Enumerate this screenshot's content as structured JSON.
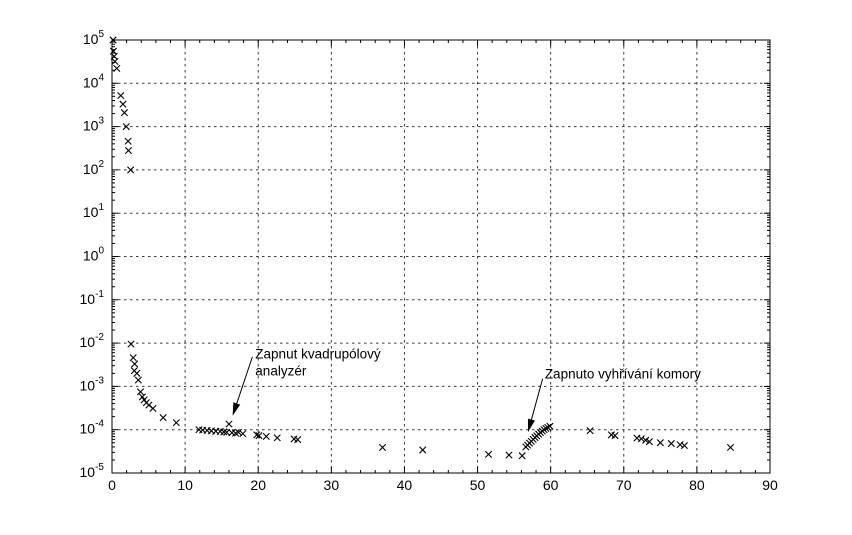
{
  "chart_data": {
    "type": "scatter",
    "title": "",
    "xlabel": "",
    "ylabel": "",
    "marker": "x",
    "legend": null,
    "grid": {
      "style": "dashed",
      "x": true,
      "y": true
    },
    "x_axis": {
      "min": 0,
      "max": 90,
      "major_tick_step": 10,
      "minor_tick_step": 2,
      "tick_labels": [
        "0",
        "10",
        "20",
        "30",
        "40",
        "50",
        "60",
        "70",
        "80",
        "90"
      ]
    },
    "y_axis": {
      "scale": "log",
      "min_exp": -5,
      "max_exp": 5,
      "tick_label_base": "10",
      "tick_exponents": [
        5,
        4,
        3,
        2,
        1,
        0,
        -1,
        -2,
        -3,
        -4,
        -5
      ]
    },
    "colors": {
      "marker": "#000000",
      "grid": "#3a3a3a",
      "axis": "#000000",
      "background": "#ffffff",
      "annotation": "#000000"
    },
    "points": [
      [
        0.15,
        100000.0
      ],
      [
        0.2,
        55000.0
      ],
      [
        0.3,
        42000.0
      ],
      [
        0.4,
        32000.0
      ],
      [
        0.65,
        22000.0
      ],
      [
        1.2,
        5200.0
      ],
      [
        1.5,
        3300.0
      ],
      [
        1.7,
        2100.0
      ],
      [
        1.95,
        1000.0
      ],
      [
        2.2,
        460.0
      ],
      [
        2.25,
        280.0
      ],
      [
        2.55,
        100.0
      ],
      [
        2.6,
        0.0095
      ],
      [
        2.9,
        0.0046
      ],
      [
        3.1,
        0.0033
      ],
      [
        3.05,
        0.0023
      ],
      [
        3.4,
        0.002
      ],
      [
        3.6,
        0.0014
      ],
      [
        3.9,
        0.00075
      ],
      [
        4.15,
        0.00057
      ],
      [
        4.4,
        0.00049
      ],
      [
        4.7,
        0.00042
      ],
      [
        5.05,
        0.00037
      ],
      [
        5.6,
        0.00031
      ],
      [
        7.0,
        0.00019
      ],
      [
        8.8,
        0.000145
      ],
      [
        11.9,
        0.0001
      ],
      [
        12.4,
        9.8e-05
      ],
      [
        13.0,
        9.6e-05
      ],
      [
        13.6,
        9.4e-05
      ],
      [
        14.2,
        9.2e-05
      ],
      [
        14.8,
        9.1e-05
      ],
      [
        15.3,
        8.9e-05
      ],
      [
        15.7,
        8.7e-05
      ],
      [
        16.0,
        0.000135
      ],
      [
        16.4,
        8.5e-05
      ],
      [
        16.9,
        8.3e-05
      ],
      [
        17.3,
        8.7e-05
      ],
      [
        17.9,
        8.1e-05
      ],
      [
        19.8,
        7.6e-05
      ],
      [
        20.1,
        7.3e-05
      ],
      [
        21.1,
        7e-05
      ],
      [
        22.6,
        6.5e-05
      ],
      [
        24.9,
        6.1e-05
      ],
      [
        25.4,
        5.9e-05
      ],
      [
        37.0,
        3.9e-05
      ],
      [
        42.5,
        3.4e-05
      ],
      [
        51.5,
        2.7e-05
      ],
      [
        54.3,
        2.6e-05
      ],
      [
        56.1,
        2.5e-05
      ],
      [
        56.6,
        4e-05
      ],
      [
        56.85,
        4.4e-05
      ],
      [
        57.1,
        4.9e-05
      ],
      [
        57.35,
        5.4e-05
      ],
      [
        57.6,
        6e-05
      ],
      [
        57.85,
        6.6e-05
      ],
      [
        58.1,
        7.2e-05
      ],
      [
        58.35,
        7.9e-05
      ],
      [
        58.6,
        8.6e-05
      ],
      [
        58.85,
        9.3e-05
      ],
      [
        59.1,
        0.0001
      ],
      [
        59.35,
        0.000107
      ],
      [
        59.6,
        0.000113
      ],
      [
        59.9,
        0.00012
      ],
      [
        65.4,
        9.5e-05
      ],
      [
        68.3,
        7.6e-05
      ],
      [
        68.8,
        7.3e-05
      ],
      [
        71.8,
        6.4e-05
      ],
      [
        72.4,
        6.2e-05
      ],
      [
        73.0,
        5.7e-05
      ],
      [
        73.5,
        5.3e-05
      ],
      [
        75.0,
        5e-05
      ],
      [
        76.5,
        4.8e-05
      ],
      [
        77.7,
        4.5e-05
      ],
      [
        78.3,
        4.3e-05
      ],
      [
        84.6,
        3.9e-05
      ]
    ],
    "annotations": [
      {
        "text_lines": [
          "Zapnut kvadrupólový",
          "analyzér"
        ],
        "text_pos": [
          19.6,
          0.008
        ],
        "arrow_from": [
          19.2,
          0.0048
        ],
        "arrow_to": [
          16.5,
          0.00021
        ]
      },
      {
        "text_lines": [
          "Zapnuto vyhřívání komory"
        ],
        "text_pos": [
          59.2,
          0.0027
        ],
        "arrow_from": [
          58.9,
          0.0015
        ],
        "arrow_to": [
          56.9,
          8.8e-05
        ]
      }
    ]
  }
}
